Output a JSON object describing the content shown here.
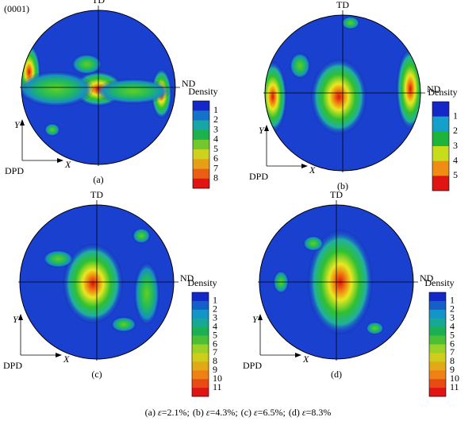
{
  "plane": "(0001)",
  "panels": [
    {
      "label": "(a)",
      "td": "TD",
      "nd": "ND",
      "y_axis": "Y",
      "x_axis": "X",
      "origin": "DPD",
      "legend": {
        "title": "Density",
        "levels": [
          "1",
          "2",
          "3",
          "4",
          "5",
          "6",
          "7",
          "8"
        ]
      }
    },
    {
      "label": "(b)",
      "td": "TD",
      "nd": "ND",
      "y_axis": "Y",
      "x_axis": "X",
      "origin": "DPD",
      "legend": {
        "title": "Density",
        "levels": [
          "1",
          "2",
          "3",
          "4",
          "5"
        ]
      }
    },
    {
      "label": "(c)",
      "td": "TD",
      "nd": "ND",
      "y_axis": "Y",
      "x_axis": "X",
      "origin": "DPD",
      "legend": {
        "title": "Density",
        "levels": [
          "1",
          "2",
          "3",
          "4",
          "5",
          "6",
          "7",
          "8",
          "9",
          "10",
          "11"
        ]
      }
    },
    {
      "label": "(d)",
      "td": "TD",
      "nd": "ND",
      "y_axis": "Y",
      "x_axis": "X",
      "origin": "DPD",
      "legend": {
        "title": "Density",
        "levels": [
          "1",
          "2",
          "3",
          "4",
          "5",
          "6",
          "7",
          "8",
          "9",
          "10",
          "11"
        ]
      }
    }
  ],
  "caption": [
    {
      "label": "(a)",
      "symbol": "ε",
      "rest": "=2.1%;"
    },
    {
      "label": "(b)",
      "symbol": "ε",
      "rest": "=4.3%;"
    },
    {
      "label": "(c)",
      "symbol": "ε",
      "rest": "=6.5%;"
    },
    {
      "label": "(d)",
      "symbol": "ε",
      "rest": "=8.3%"
    }
  ]
}
